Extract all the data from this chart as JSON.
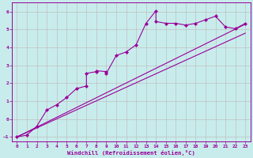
{
  "xlabel": "Windchill (Refroidissement éolien,°C)",
  "bg_color": "#c8ecec",
  "line_color": "#990099",
  "grid_color": "#c0c0c0",
  "xlim": [
    -0.5,
    23.5
  ],
  "ylim": [
    -1.25,
    6.5
  ],
  "xticks": [
    0,
    1,
    2,
    3,
    4,
    5,
    6,
    7,
    8,
    9,
    10,
    11,
    12,
    13,
    14,
    15,
    16,
    17,
    18,
    19,
    20,
    21,
    22,
    23
  ],
  "yticks": [
    -1,
    0,
    1,
    2,
    3,
    4,
    5,
    6
  ],
  "scatter_x": [
    0,
    1,
    2,
    3,
    4,
    5,
    6,
    7,
    7,
    8,
    8,
    9,
    9,
    10,
    11,
    12,
    13,
    14,
    14,
    15,
    16,
    17,
    18,
    19,
    20,
    21,
    22,
    23
  ],
  "scatter_y": [
    -1.0,
    -0.9,
    -0.4,
    0.5,
    0.8,
    1.2,
    1.7,
    1.85,
    2.55,
    2.65,
    2.7,
    2.65,
    2.55,
    3.55,
    3.75,
    4.15,
    5.35,
    6.05,
    5.45,
    5.35,
    5.35,
    5.25,
    5.35,
    5.55,
    5.75,
    5.15,
    5.05,
    5.35
  ],
  "line1_x": [
    0,
    23
  ],
  "line1_y": [
    -1.0,
    5.3
  ],
  "line2_x": [
    0,
    23
  ],
  "line2_y": [
    -1.0,
    4.8
  ]
}
